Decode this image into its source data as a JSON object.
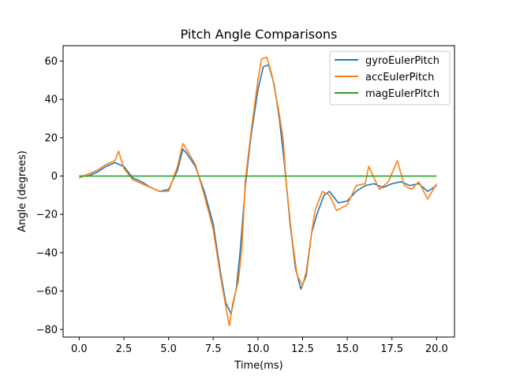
{
  "chart_data": {
    "type": "line",
    "title": "Pitch Angle Comparisons",
    "xlabel": "Time(ms)",
    "ylabel": "Angle (degrees)",
    "xlim": [
      -0.9,
      21.0
    ],
    "ylim": [
      -84,
      68
    ],
    "xticks": [
      0.0,
      2.5,
      5.0,
      7.5,
      10.0,
      12.5,
      15.0,
      17.5,
      20.0
    ],
    "xtick_labels": [
      "0.0",
      "2.5",
      "5.0",
      "7.5",
      "10.0",
      "12.5",
      "15.0",
      "17.5",
      "20.0"
    ],
    "yticks": [
      -80,
      -60,
      -40,
      -20,
      0,
      20,
      40,
      60
    ],
    "ytick_labels": [
      "−80",
      "−60",
      "−40",
      "−20",
      "0",
      "20",
      "40",
      "60"
    ],
    "grid": false,
    "legend_position": "top-right",
    "series": [
      {
        "name": "gyroEulerPitch",
        "color": "#1f77b4",
        "points": [
          [
            0.0,
            0
          ],
          [
            0.5,
            0
          ],
          [
            1.0,
            2
          ],
          [
            1.5,
            5
          ],
          [
            2.0,
            7
          ],
          [
            2.5,
            5
          ],
          [
            3.0,
            -1
          ],
          [
            3.5,
            -3
          ],
          [
            4.0,
            -6
          ],
          [
            4.5,
            -8
          ],
          [
            5.0,
            -7
          ],
          [
            5.5,
            3
          ],
          [
            5.8,
            14
          ],
          [
            6.0,
            12
          ],
          [
            6.5,
            5
          ],
          [
            7.0,
            -8
          ],
          [
            7.5,
            -25
          ],
          [
            7.9,
            -50
          ],
          [
            8.2,
            -66
          ],
          [
            8.5,
            -72
          ],
          [
            8.8,
            -58
          ],
          [
            9.0,
            -40
          ],
          [
            9.3,
            -5
          ],
          [
            9.6,
            20
          ],
          [
            10.0,
            45
          ],
          [
            10.3,
            57
          ],
          [
            10.6,
            58
          ],
          [
            10.9,
            48
          ],
          [
            11.2,
            30
          ],
          [
            11.5,
            5
          ],
          [
            11.8,
            -25
          ],
          [
            12.1,
            -48
          ],
          [
            12.4,
            -59
          ],
          [
            12.7,
            -52
          ],
          [
            13.0,
            -30
          ],
          [
            13.3,
            -20
          ],
          [
            13.7,
            -10
          ],
          [
            14.0,
            -8
          ],
          [
            14.5,
            -14
          ],
          [
            15.0,
            -13
          ],
          [
            15.5,
            -8
          ],
          [
            16.0,
            -5
          ],
          [
            16.5,
            -4
          ],
          [
            17.0,
            -6
          ],
          [
            17.5,
            -4
          ],
          [
            18.0,
            -3
          ],
          [
            18.5,
            -5
          ],
          [
            19.0,
            -4
          ],
          [
            19.5,
            -8
          ],
          [
            20.0,
            -5
          ]
        ]
      },
      {
        "name": "accEulerPitch",
        "color": "#ff7f0e",
        "points": [
          [
            0.0,
            -1
          ],
          [
            0.5,
            1
          ],
          [
            1.0,
            3
          ],
          [
            1.5,
            6
          ],
          [
            2.0,
            8
          ],
          [
            2.2,
            13
          ],
          [
            2.5,
            4
          ],
          [
            3.0,
            -2
          ],
          [
            3.5,
            -4
          ],
          [
            4.0,
            -6
          ],
          [
            4.5,
            -8
          ],
          [
            5.0,
            -8
          ],
          [
            5.5,
            5
          ],
          [
            5.8,
            17
          ],
          [
            6.0,
            14
          ],
          [
            6.5,
            6
          ],
          [
            7.0,
            -10
          ],
          [
            7.5,
            -28
          ],
          [
            7.9,
            -52
          ],
          [
            8.2,
            -68
          ],
          [
            8.4,
            -78
          ],
          [
            8.6,
            -66
          ],
          [
            8.9,
            -55
          ],
          [
            9.1,
            -38
          ],
          [
            9.3,
            -2
          ],
          [
            9.6,
            22
          ],
          [
            10.0,
            50
          ],
          [
            10.2,
            61
          ],
          [
            10.5,
            62
          ],
          [
            10.8,
            52
          ],
          [
            11.2,
            32
          ],
          [
            11.4,
            20
          ],
          [
            11.6,
            -5
          ],
          [
            11.9,
            -32
          ],
          [
            12.2,
            -52
          ],
          [
            12.5,
            -57
          ],
          [
            12.7,
            -50
          ],
          [
            13.0,
            -30
          ],
          [
            13.2,
            -18
          ],
          [
            13.6,
            -8
          ],
          [
            14.0,
            -10
          ],
          [
            14.4,
            -18
          ],
          [
            15.0,
            -15
          ],
          [
            15.5,
            -5
          ],
          [
            16.0,
            -4
          ],
          [
            16.2,
            5
          ],
          [
            16.8,
            -7
          ],
          [
            17.3,
            -3
          ],
          [
            17.8,
            8
          ],
          [
            18.2,
            -5
          ],
          [
            18.6,
            -7
          ],
          [
            19.0,
            -3
          ],
          [
            19.5,
            -12
          ],
          [
            20.0,
            -4
          ]
        ]
      },
      {
        "name": "magEulerPitch",
        "color": "#2ca02c",
        "points": [
          [
            0.0,
            0
          ],
          [
            20.0,
            0
          ]
        ]
      }
    ]
  }
}
